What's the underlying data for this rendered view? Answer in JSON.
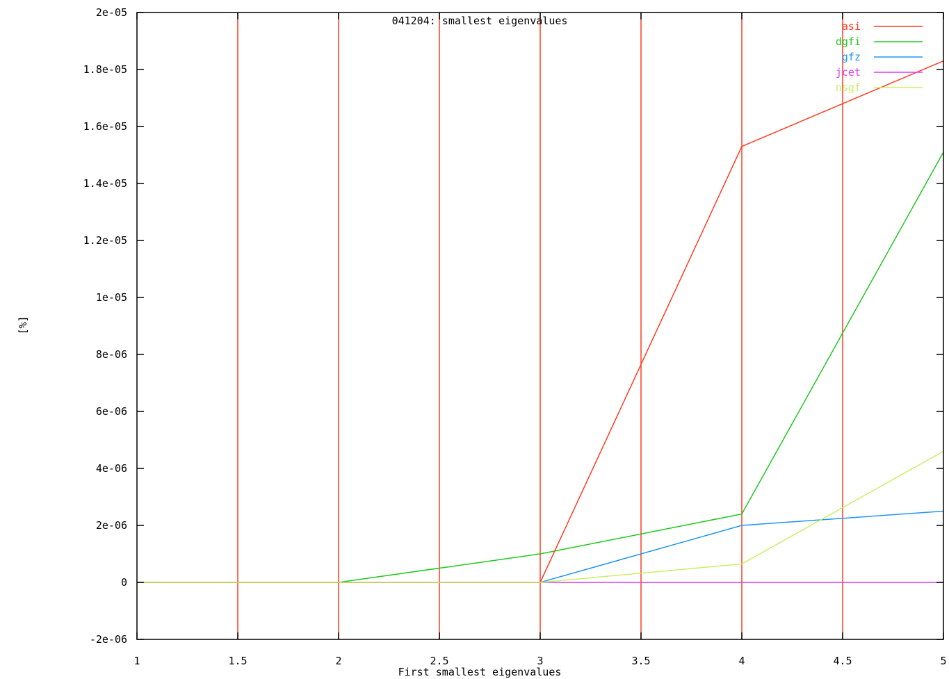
{
  "chart_data": {
    "type": "line",
    "title": "041204: smallest eigenvalues",
    "xlabel": "First smallest eigenvalues",
    "ylabel": "[%]",
    "xlim": [
      1,
      5
    ],
    "ylim": [
      -2e-06,
      2e-05
    ],
    "x_ticks": [
      {
        "value": 1,
        "label": "1"
      },
      {
        "value": 1.5,
        "label": "1.5"
      },
      {
        "value": 2,
        "label": "2"
      },
      {
        "value": 2.5,
        "label": "2.5"
      },
      {
        "value": 3,
        "label": "3"
      },
      {
        "value": 3.5,
        "label": "3.5"
      },
      {
        "value": 4,
        "label": "4"
      },
      {
        "value": 4.5,
        "label": "4.5"
      },
      {
        "value": 5,
        "label": "5"
      }
    ],
    "y_ticks": [
      {
        "value": -2e-06,
        "label": "-2e-06"
      },
      {
        "value": 0,
        "label": "0"
      },
      {
        "value": 2e-06,
        "label": "2e-06"
      },
      {
        "value": 4e-06,
        "label": "4e-06"
      },
      {
        "value": 6e-06,
        "label": "6e-06"
      },
      {
        "value": 8e-06,
        "label": "8e-06"
      },
      {
        "value": 1e-05,
        "label": "1e-05"
      },
      {
        "value": 1.2e-05,
        "label": "1.2e-05"
      },
      {
        "value": 1.4e-05,
        "label": "1.4e-05"
      },
      {
        "value": 1.6e-05,
        "label": "1.6e-05"
      },
      {
        "value": 1.8e-05,
        "label": "1.8e-05"
      },
      {
        "value": 2e-05,
        "label": "2e-05"
      }
    ],
    "legend_position": "top-right",
    "series": [
      {
        "name": "asi",
        "color": "#ff3c1e",
        "x": [
          1,
          2,
          3,
          4,
          5
        ],
        "y": [
          0,
          0,
          0,
          1.53e-05,
          1.83e-05
        ],
        "vertical_lines_at": [
          1.5,
          2,
          2.5,
          3,
          3.5,
          4,
          4.5
        ]
      },
      {
        "name": "dgfi",
        "color": "#1ec81e",
        "x": [
          1,
          2,
          3,
          4,
          5
        ],
        "y": [
          0,
          0,
          1e-06,
          2.4e-06,
          1.51e-05
        ]
      },
      {
        "name": "gfz",
        "color": "#1e96f0",
        "x": [
          1,
          2,
          3,
          4,
          5
        ],
        "y": [
          0,
          0,
          0,
          2e-06,
          2.5e-06
        ]
      },
      {
        "name": "jcet",
        "color": "#dc3cf0",
        "x": [
          1,
          2,
          3,
          4,
          5
        ],
        "y": [
          0,
          0,
          0,
          0,
          0
        ]
      },
      {
        "name": "nsgf",
        "color": "#c8f064",
        "x": [
          1,
          2,
          3,
          4,
          5
        ],
        "y": [
          0,
          0,
          0,
          6.5e-07,
          4.6e-06
        ]
      }
    ]
  }
}
